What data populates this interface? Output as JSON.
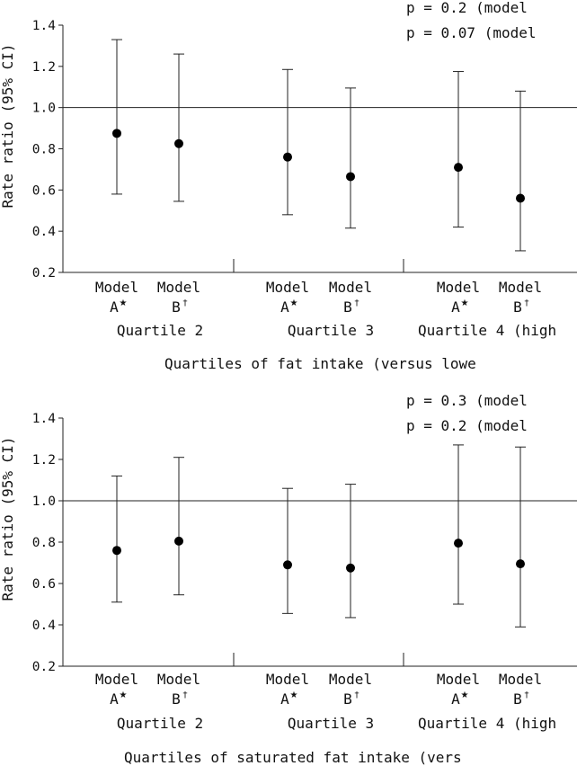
{
  "chart_data": [
    {
      "type": "scatter",
      "ylabel": "Rate ratio (95% CI)",
      "xlabel": "Quartiles of fat intake (versus lowe",
      "ylim": [
        0.2,
        1.4
      ],
      "yticks": [
        "0.2",
        "0.4",
        "0.6",
        "0.8",
        "1.0",
        "1.2",
        "1.4"
      ],
      "reference_line": 1.0,
      "annotations": [
        "p = 0.2 (model",
        "p = 0.07 (model"
      ],
      "groups": [
        "Quartile 2",
        "Quartile 3",
        "Quartile 4 (high"
      ],
      "points": [
        {
          "model": "Model",
          "variant": "A",
          "mark": "★",
          "group": "Quartile 2",
          "y": 0.875,
          "lo": 0.58,
          "hi": 1.33
        },
        {
          "model": "Model",
          "variant": "B",
          "mark": "†",
          "group": "Quartile 2",
          "y": 0.825,
          "lo": 0.545,
          "hi": 1.26
        },
        {
          "model": "Model",
          "variant": "A",
          "mark": "★",
          "group": "Quartile 3",
          "y": 0.76,
          "lo": 0.48,
          "hi": 1.185
        },
        {
          "model": "Model",
          "variant": "B",
          "mark": "†",
          "group": "Quartile 3",
          "y": 0.665,
          "lo": 0.415,
          "hi": 1.095
        },
        {
          "model": "Model",
          "variant": "A",
          "mark": "★",
          "group": "Quartile 4 (high",
          "y": 0.71,
          "lo": 0.42,
          "hi": 1.175
        },
        {
          "model": "Model",
          "variant": "B",
          "mark": "†",
          "group": "Quartile 4 (high",
          "y": 0.56,
          "lo": 0.305,
          "hi": 1.08
        }
      ]
    },
    {
      "type": "scatter",
      "ylabel": "Rate ratio (95% CI)",
      "xlabel": "Quartiles of saturated fat intake (vers",
      "ylim": [
        0.2,
        1.4
      ],
      "yticks": [
        "0.2",
        "0.4",
        "0.6",
        "0.8",
        "1.0",
        "1.2",
        "1.4"
      ],
      "reference_line": 1.0,
      "annotations": [
        "p = 0.3 (model",
        "p = 0.2 (model"
      ],
      "groups": [
        "Quartile 2",
        "Quartile 3",
        "Quartile 4 (high"
      ],
      "points": [
        {
          "model": "Model",
          "variant": "A",
          "mark": "★",
          "group": "Quartile 2",
          "y": 0.76,
          "lo": 0.51,
          "hi": 1.12
        },
        {
          "model": "Model",
          "variant": "B",
          "mark": "†",
          "group": "Quartile 2",
          "y": 0.805,
          "lo": 0.545,
          "hi": 1.21
        },
        {
          "model": "Model",
          "variant": "A",
          "mark": "★",
          "group": "Quartile 3",
          "y": 0.69,
          "lo": 0.455,
          "hi": 1.06
        },
        {
          "model": "Model",
          "variant": "B",
          "mark": "†",
          "group": "Quartile 3",
          "y": 0.675,
          "lo": 0.435,
          "hi": 1.08
        },
        {
          "model": "Model",
          "variant": "A",
          "mark": "★",
          "group": "Quartile 4 (high",
          "y": 0.795,
          "lo": 0.5,
          "hi": 1.27
        },
        {
          "model": "Model",
          "variant": "B",
          "mark": "†",
          "group": "Quartile 4 (high",
          "y": 0.695,
          "lo": 0.39,
          "hi": 1.26
        }
      ]
    }
  ]
}
